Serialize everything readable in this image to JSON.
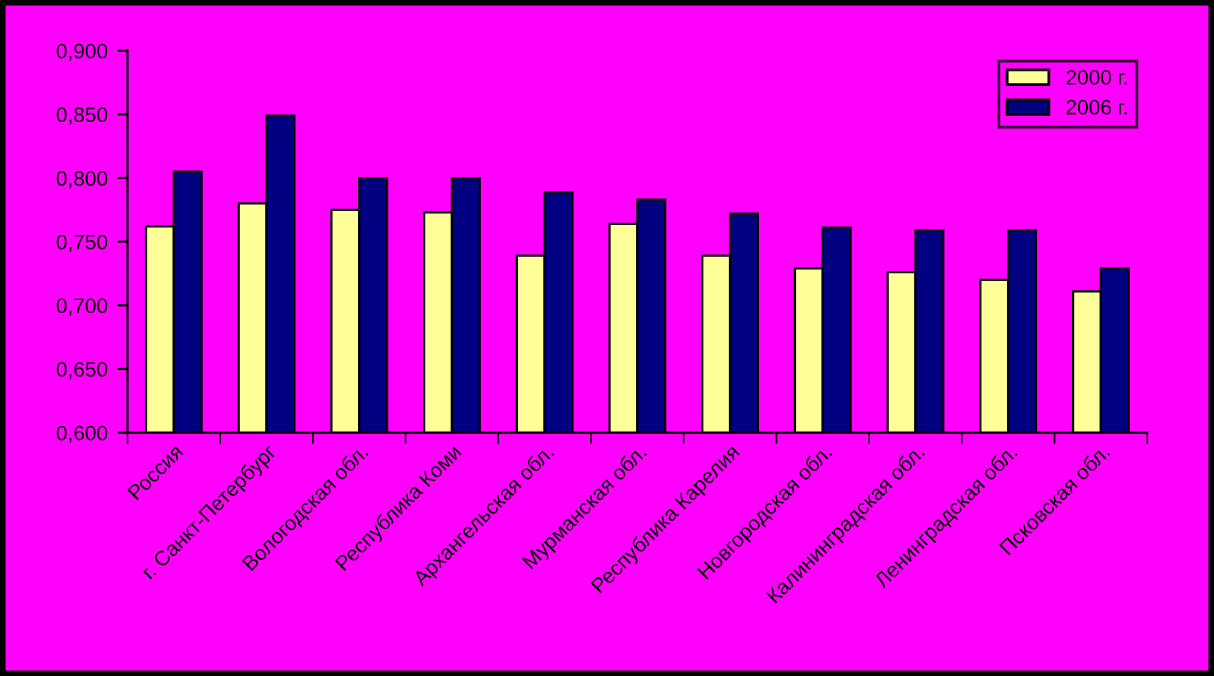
{
  "chart_data": {
    "type": "bar",
    "categories": [
      "Россия",
      "г. Санкт-Петербург",
      "Вологодская обл.",
      "Республика Коми",
      "Архангельская обл.",
      "Мурманская обл.",
      "Республика Карелия",
      "Новгородская обл.",
      "Калининградская обл.",
      "Ленинградская обл.",
      "Псковская обл."
    ],
    "series": [
      {
        "name": "2000 г.",
        "color": "#ffff99",
        "values": [
          0.762,
          0.78,
          0.775,
          0.773,
          0.739,
          0.764,
          0.739,
          0.729,
          0.726,
          0.72,
          0.711
        ]
      },
      {
        "name": "2006 г.",
        "color": "#000080",
        "values": [
          0.805,
          0.849,
          0.8,
          0.8,
          0.789,
          0.783,
          0.772,
          0.761,
          0.759,
          0.759,
          0.729
        ]
      }
    ],
    "ylim": [
      0.6,
      0.9
    ],
    "yticks": [
      {
        "value": 0.6,
        "label": "0,600"
      },
      {
        "value": 0.65,
        "label": "0,650"
      },
      {
        "value": 0.7,
        "label": "0,700"
      },
      {
        "value": 0.75,
        "label": "0,750"
      },
      {
        "value": 0.8,
        "label": "0,800"
      },
      {
        "value": 0.85,
        "label": "0,850"
      },
      {
        "value": 0.9,
        "label": "0,900"
      }
    ],
    "grid": false,
    "legend": "top right"
  }
}
